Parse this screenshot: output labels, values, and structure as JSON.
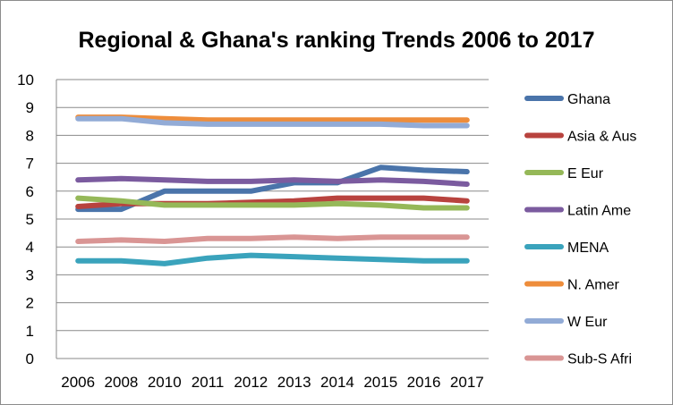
{
  "chart_data": {
    "type": "line",
    "title": "Regional & Ghana's ranking Trends 2006 to 2017",
    "xlabel": "",
    "ylabel": "",
    "categories": [
      "2006",
      "2008",
      "2010",
      "2011",
      "2012",
      "2013",
      "2014",
      "2015",
      "2016",
      "2017"
    ],
    "ylim": [
      0,
      10
    ],
    "yticks": [
      "0",
      "1",
      "2",
      "3",
      "4",
      "5",
      "6",
      "7",
      "8",
      "9",
      "10"
    ],
    "grid": true,
    "legend_position": "right",
    "series": [
      {
        "name": "Ghana",
        "color": "#4a74aa",
        "values": [
          5.35,
          5.35,
          6.0,
          6.0,
          6.0,
          6.3,
          6.3,
          6.85,
          6.75,
          6.7
        ]
      },
      {
        "name": "Asia & Aus",
        "color": "#b8433e",
        "values": [
          5.45,
          5.55,
          5.55,
          5.55,
          5.6,
          5.65,
          5.75,
          5.75,
          5.75,
          5.65
        ]
      },
      {
        "name": "E Eur",
        "color": "#95b858",
        "values": [
          5.75,
          5.65,
          5.5,
          5.5,
          5.5,
          5.5,
          5.55,
          5.5,
          5.4,
          5.4
        ]
      },
      {
        "name": "Latin Ame",
        "color": "#7b5b9f",
        "values": [
          6.4,
          6.45,
          6.4,
          6.35,
          6.35,
          6.4,
          6.35,
          6.4,
          6.35,
          6.25
        ]
      },
      {
        "name": "MENA",
        "color": "#3aa3bc",
        "values": [
          3.5,
          3.5,
          3.4,
          3.6,
          3.7,
          3.65,
          3.6,
          3.55,
          3.5,
          3.5
        ]
      },
      {
        "name": "N. Amer",
        "color": "#ee8d3b",
        "values": [
          8.65,
          8.65,
          8.6,
          8.55,
          8.55,
          8.55,
          8.55,
          8.55,
          8.55,
          8.55
        ]
      },
      {
        "name": "W Eur",
        "color": "#92abd6",
        "values": [
          8.6,
          8.6,
          8.45,
          8.4,
          8.4,
          8.4,
          8.4,
          8.4,
          8.35,
          8.35
        ]
      },
      {
        "name": "Sub-S Afri",
        "color": "#d99594",
        "values": [
          4.2,
          4.25,
          4.2,
          4.3,
          4.3,
          4.35,
          4.3,
          4.35,
          4.35,
          4.35
        ]
      }
    ]
  }
}
